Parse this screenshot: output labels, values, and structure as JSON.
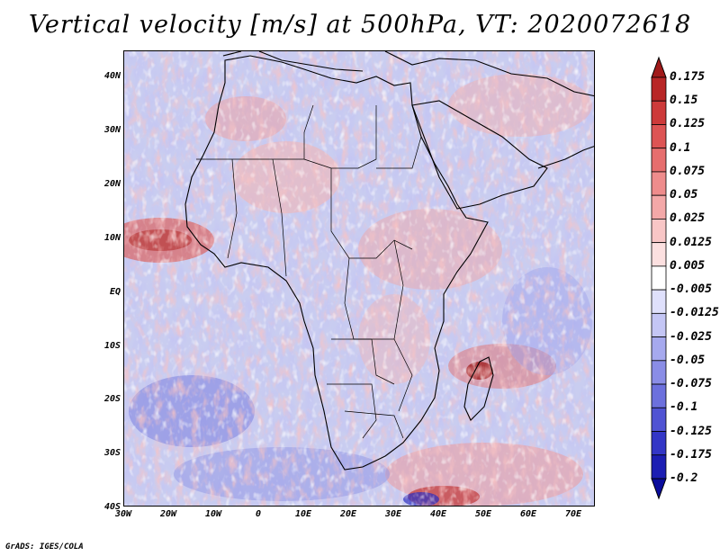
{
  "title": "Vertical velocity [m/s] at 500hPa, VT: 2020072618",
  "credit": "GrADS: IGES/COLA",
  "lat_labels": [
    "40N",
    "30N",
    "20N",
    "10N",
    "EQ",
    "10S",
    "20S",
    "30S",
    "40S"
  ],
  "lon_labels": [
    "30W",
    "20W",
    "10W",
    "0",
    "10E",
    "20E",
    "30E",
    "40E",
    "50E",
    "60E",
    "70E"
  ],
  "colorbar": {
    "labels": [
      "0.175",
      "0.15",
      "0.125",
      "0.1",
      "0.075",
      "0.05",
      "0.025",
      "0.0125",
      "0.005",
      "-0.005",
      "-0.0125",
      "-0.025",
      "-0.05",
      "-0.075",
      "-0.1",
      "-0.125",
      "-0.175",
      "-0.2"
    ],
    "colors": [
      "#a01a1a",
      "#b82626",
      "#cd3a3a",
      "#dd5454",
      "#e66e6e",
      "#ee8c8c",
      "#f3a8a8",
      "#f8c6c6",
      "#fce0e0",
      "#ffffff",
      "#dfe0fc",
      "#c4c6f5",
      "#a6a9ee",
      "#8a8de6",
      "#6c70dd",
      "#5053d3",
      "#3336c6",
      "#1c1eb3",
      "#0a0c9c"
    ]
  },
  "colors": {
    "frame": "#000000",
    "background": "#ffffff"
  }
}
